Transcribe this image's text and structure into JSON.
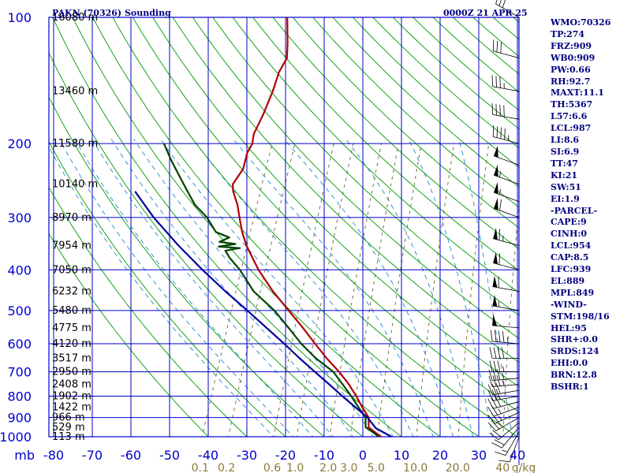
{
  "header": {
    "title": "PAKN (70326) Sounding",
    "datetime": "0000Z 21 APR 25"
  },
  "stats": [
    "WMO:70326",
    "TP:274",
    "FRZ:909",
    "WB0:909",
    "PW:0.66",
    "RH:92.7",
    "MAXT:11.1",
    "TH:5367",
    "L57:6.6",
    "LCL:987",
    "LI:8.6",
    "SI:6.9",
    "TT:47",
    "KI:21",
    "SW:51",
    "EI:1.9",
    "-PARCEL-",
    "CAPE:9",
    "CINH:0",
    "LCL:954",
    "CAP:8.5",
    "LFC:939",
    "EL:889",
    "MPL:849",
    "-WIND-",
    "STM:198/16",
    "HEL:95",
    "SHR+:0.0",
    "SRDS:124",
    "EHI:0.0",
    "BRN:12.8",
    "BSHR:1"
  ],
  "colors": {
    "grid": "#0000cc",
    "dry_adiabat": "#009900",
    "moist_adiabat": "#2288cc",
    "mixing_ratio": "#666633",
    "temperature": "#b00000",
    "dewpoint": "#004400",
    "parcel": "#0000a0",
    "wind_barb": "#000000"
  },
  "chart_data": {
    "type": "line",
    "chart_kind": "skew-T log-P sounding",
    "pressure_axis": {
      "scale": "log",
      "range": [
        1000,
        100
      ],
      "unit_label": "mb",
      "ticks": [
        100,
        200,
        300,
        400,
        500,
        600,
        700,
        800,
        900,
        1000
      ]
    },
    "height_labels": [
      {
        "p": 100,
        "label": "16080 m"
      },
      {
        "p": 150,
        "label": "13460 m"
      },
      {
        "p": 200,
        "label": "11580 m"
      },
      {
        "p": 250,
        "label": "10140 m"
      },
      {
        "p": 300,
        "label": "8970 m"
      },
      {
        "p": 350,
        "label": "7954 m"
      },
      {
        "p": 400,
        "label": "7050 m"
      },
      {
        "p": 450,
        "label": "6232 m"
      },
      {
        "p": 500,
        "label": "5480 m"
      },
      {
        "p": 550,
        "label": "4775 m"
      },
      {
        "p": 600,
        "label": "4120 m"
      },
      {
        "p": 650,
        "label": "3517 m"
      },
      {
        "p": 700,
        "label": "2950 m"
      },
      {
        "p": 750,
        "label": "2408 m"
      },
      {
        "p": 800,
        "label": "1902 m"
      },
      {
        "p": 850,
        "label": "1422 m"
      },
      {
        "p": 900,
        "label": "966 m"
      },
      {
        "p": 950,
        "label": "529 m"
      },
      {
        "p": 1000,
        "label": "113 m"
      }
    ],
    "temperature_axis": {
      "unit": "C",
      "range": [
        -80,
        40
      ],
      "ticks": [
        -80,
        -70,
        -60,
        -50,
        -40,
        -30,
        -20,
        -10,
        0,
        10,
        20,
        30,
        40
      ]
    },
    "mixing_ratio_axis": {
      "unit_label": "g/kg",
      "ticks": [
        0.1,
        0.2,
        0.6,
        1.0,
        2.0,
        3.0,
        5.0,
        10.0,
        20.0,
        40
      ],
      "tick_labels": [
        "0.1",
        "0.2",
        "0.6",
        "1.0",
        "2.0",
        "3.0",
        "5.0",
        "10.0",
        "20.0",
        "40"
      ]
    },
    "series": [
      {
        "key": "temperature",
        "points": [
          [
            1000,
            4.8
          ],
          [
            980,
            3.0
          ],
          [
            950,
            0.5
          ],
          [
            900,
            -0.6
          ],
          [
            850,
            -3.4
          ],
          [
            800,
            -6.2
          ],
          [
            750,
            -9.4
          ],
          [
            700,
            -13.3
          ],
          [
            650,
            -18.0
          ],
          [
            600,
            -22.6
          ],
          [
            550,
            -27.5
          ],
          [
            500,
            -33.1
          ],
          [
            450,
            -39.3
          ],
          [
            400,
            -45.4
          ],
          [
            375,
            -48.2
          ],
          [
            350,
            -51.2
          ],
          [
            325,
            -53.8
          ],
          [
            300,
            -56.1
          ],
          [
            280,
            -58.0
          ],
          [
            260,
            -60.6
          ],
          [
            250,
            -61.5
          ],
          [
            230,
            -60.5
          ],
          [
            210,
            -61.2
          ],
          [
            200,
            -60.9
          ],
          [
            190,
            -61.6
          ],
          [
            170,
            -61.3
          ],
          [
            150,
            -61.4
          ],
          [
            135,
            -61.9
          ],
          [
            125,
            -61.4
          ],
          [
            115,
            -62.9
          ],
          [
            100,
            -65.8
          ]
        ]
      },
      {
        "key": "dewpoint",
        "points": [
          [
            1000,
            4.0
          ],
          [
            980,
            2.5
          ],
          [
            950,
            -0.3
          ],
          [
            900,
            -1.4
          ],
          [
            850,
            -4.4
          ],
          [
            800,
            -7.5
          ],
          [
            750,
            -11.0
          ],
          [
            700,
            -14.8
          ],
          [
            650,
            -20.8
          ],
          [
            600,
            -26.2
          ],
          [
            550,
            -31.2
          ],
          [
            500,
            -36.8
          ],
          [
            450,
            -44.3
          ],
          [
            400,
            -50.2
          ],
          [
            375,
            -54.1
          ],
          [
            360,
            -56.1
          ],
          [
            355,
            -52.6
          ],
          [
            352,
            -58.3
          ],
          [
            347,
            -54.2
          ],
          [
            343,
            -58.6
          ],
          [
            335,
            -56.5
          ],
          [
            325,
            -60.6
          ],
          [
            300,
            -64.5
          ],
          [
            280,
            -69.0
          ],
          [
            260,
            -72.4
          ],
          [
            240,
            -76.0
          ],
          [
            220,
            -79.9
          ],
          [
            200,
            -83.8
          ]
        ]
      },
      {
        "key": "parcel",
        "points": [
          [
            1000,
            7.4
          ],
          [
            954,
            2.4
          ],
          [
            900,
            -0.9
          ],
          [
            850,
            -5.2
          ],
          [
            800,
            -9.8
          ],
          [
            750,
            -14.5
          ],
          [
            700,
            -19.6
          ],
          [
            650,
            -25.0
          ],
          [
            600,
            -30.6
          ],
          [
            550,
            -36.9
          ],
          [
            500,
            -43.8
          ],
          [
            450,
            -51.6
          ],
          [
            400,
            -59.9
          ],
          [
            350,
            -68.8
          ],
          [
            300,
            -78.3
          ],
          [
            260,
            -86.0
          ]
        ]
      }
    ],
    "wind_barbs": [
      {
        "p": 1000,
        "dir": 200,
        "spd": 10
      },
      {
        "p": 975,
        "dir": 210,
        "spd": 15
      },
      {
        "p": 950,
        "dir": 220,
        "spd": 20
      },
      {
        "p": 925,
        "dir": 230,
        "spd": 20
      },
      {
        "p": 900,
        "dir": 240,
        "spd": 25
      },
      {
        "p": 875,
        "dir": 245,
        "spd": 25
      },
      {
        "p": 850,
        "dir": 250,
        "spd": 25
      },
      {
        "p": 825,
        "dir": 255,
        "spd": 30
      },
      {
        "p": 800,
        "dir": 260,
        "spd": 30
      },
      {
        "p": 775,
        "dir": 260,
        "spd": 30
      },
      {
        "p": 750,
        "dir": 265,
        "spd": 35
      },
      {
        "p": 725,
        "dir": 265,
        "spd": 35
      },
      {
        "p": 700,
        "dir": 270,
        "spd": 35
      },
      {
        "p": 650,
        "dir": 270,
        "spd": 40
      },
      {
        "p": 600,
        "dir": 275,
        "spd": 45
      },
      {
        "p": 550,
        "dir": 275,
        "spd": 50
      },
      {
        "p": 500,
        "dir": 280,
        "spd": 55
      },
      {
        "p": 450,
        "dir": 280,
        "spd": 60
      },
      {
        "p": 400,
        "dir": 285,
        "spd": 60
      },
      {
        "p": 350,
        "dir": 285,
        "spd": 65
      },
      {
        "p": 300,
        "dir": 290,
        "spd": 60
      },
      {
        "p": 275,
        "dir": 290,
        "spd": 55
      },
      {
        "p": 250,
        "dir": 290,
        "spd": 55
      },
      {
        "p": 225,
        "dir": 290,
        "spd": 50
      },
      {
        "p": 200,
        "dir": 285,
        "spd": 45
      },
      {
        "p": 175,
        "dir": 280,
        "spd": 40
      },
      {
        "p": 150,
        "dir": 280,
        "spd": 35
      },
      {
        "p": 125,
        "dir": 285,
        "spd": 30
      },
      {
        "p": 100,
        "dir": 300,
        "spd": 30
      }
    ]
  }
}
